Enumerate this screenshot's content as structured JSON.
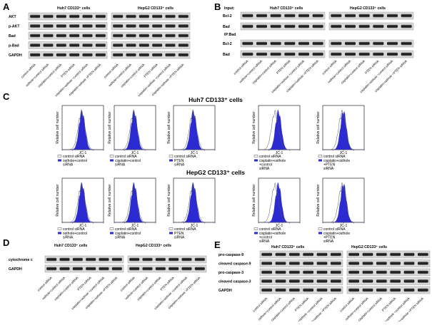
{
  "panel_letters": {
    "a": "A",
    "b": "B",
    "c": "C",
    "d": "D",
    "e": "E"
  },
  "cell_groups": {
    "huh7": "Huh7 CD133⁺ cells",
    "hepg2": "HepG2 CD133⁺ cells"
  },
  "lanes": [
    "control siRNA",
    "osthole+control siRNA",
    "cisplatin+control siRNA",
    "PTEN siRNA",
    "cisplatin+osthole +control siRNA",
    "cisplatin+osthole +PTEN siRNA"
  ],
  "panel_a": {
    "rows": [
      "AKT",
      "p-AKT",
      "Bad",
      "p-Bad",
      "GAPDH"
    ]
  },
  "panel_b": {
    "input_label": "Input:",
    "ip_label": "IP:Bad",
    "input_rows": [
      "Bcl-2",
      "Bad"
    ],
    "ip_rows": [
      "Bcl-2",
      "Bad"
    ]
  },
  "panel_c": {
    "huh7_title": "Huh7 CD133⁺ cells",
    "hepg2_title": "HepG2 CD133⁺ cells",
    "xlabel": "JC-1",
    "ylabel": "Relative cell number",
    "control_legend": "control siRNA",
    "treatments": [
      "osthole+control siRNA",
      "cisplatin+control siRNA",
      "PTEN siRNA",
      "cisplatin+osthole +control siRNA",
      "cisplatin+osthole +PTEN siRNA"
    ]
  },
  "panel_d": {
    "rows": [
      "cytochrome c",
      "GAPDH"
    ]
  },
  "panel_e": {
    "rows": [
      "pro-caspase-9",
      "cleaved caspase-9",
      "pro-caspase-3",
      "cleaved caspase-3",
      "GAPDH"
    ]
  },
  "colors": {
    "histogram_fill": "#2b2bd1",
    "blot_bg": "#d9d9d9",
    "band": "#1a1a1a"
  }
}
